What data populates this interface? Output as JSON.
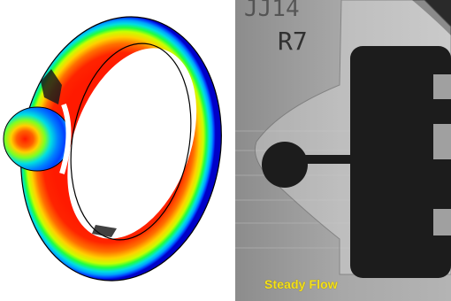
{
  "left_panel": {
    "colors": {
      "outer": "#0000c8",
      "band1": "#0040ff",
      "band2": "#00a0ff",
      "band3": "#00e0e0",
      "band4": "#20ff40",
      "band5": "#c8ff00",
      "band6": "#ffd000",
      "band7": "#ff7000",
      "inner": "#ff1a00",
      "edge": "#000000"
    }
  },
  "right_panel": {
    "handwritten_label": "R7",
    "handwritten_label_top": "JJ14",
    "caption": "Steady Flow",
    "colors": {
      "background": "#9a9a9a",
      "dark": "#1c1c1c",
      "caption": "#f4e01a"
    }
  }
}
